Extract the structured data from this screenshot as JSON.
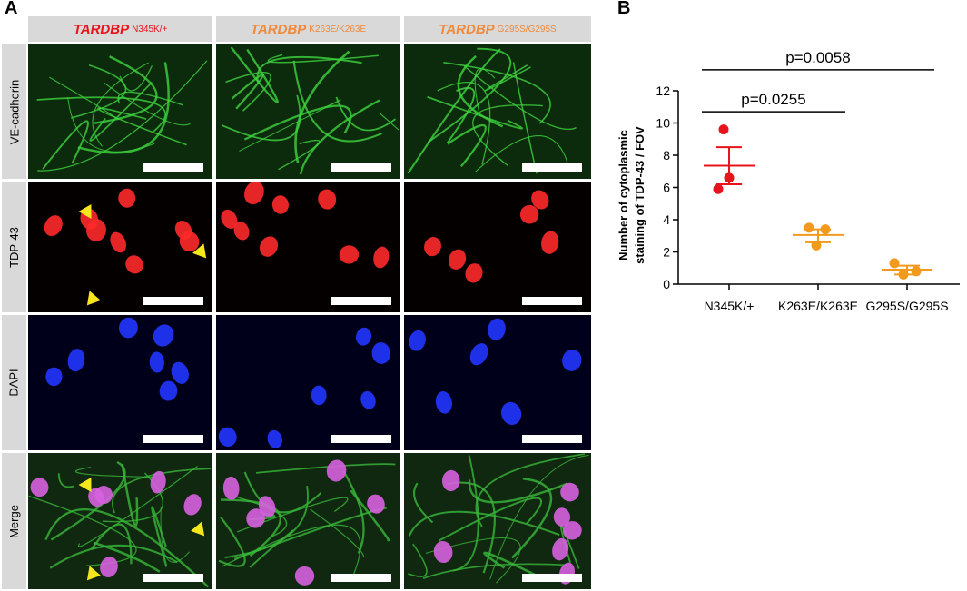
{
  "panel_a": {
    "letter": "A",
    "columns": [
      {
        "gene": "TARDBP",
        "genotype": "N345K/+",
        "color": "#e8141c"
      },
      {
        "gene": "TARDBP",
        "genotype": "K263E/K263E",
        "color": "#f08a3c"
      },
      {
        "gene": "TARDBP",
        "genotype": "G295S/G295S",
        "color": "#f08a3c"
      }
    ],
    "rows": [
      "VE-cadherin",
      "TDP-43",
      "DAPI",
      "Merge"
    ],
    "channel_colors": {
      "VE-cadherin": "#2fb82f",
      "TDP-43": "#ff2020",
      "DAPI": "#1a2cff",
      "Merge": "#d04ad8"
    },
    "arrow_color": "#f5e71c"
  },
  "panel_b": {
    "letter": "B",
    "chart_data": {
      "type": "scatter",
      "categories": [
        "N345K/+",
        "K263E/K263E",
        "G295S/G295S"
      ],
      "series": [
        {
          "category": "N345K/+",
          "color": "#e8141c",
          "points": [
            9.6,
            6.6,
            5.9
          ],
          "mean": 7.35,
          "sem_low": 6.2,
          "sem_high": 8.5
        },
        {
          "category": "K263E/K263E",
          "color": "#f29a1e",
          "points": [
            3.5,
            3.4,
            2.4
          ],
          "mean": 3.05,
          "sem_low": 2.6,
          "sem_high": 3.4
        },
        {
          "category": "G295S/G295S",
          "color": "#f29a1e",
          "points": [
            1.3,
            0.8,
            0.6
          ],
          "mean": 0.9,
          "sem_low": 0.6,
          "sem_high": 1.15
        }
      ],
      "ylabel_line1": "Number of cytoplasmic",
      "ylabel_line2": "staining of TDP-43 / FOV",
      "xlabel": "",
      "ylim": [
        0,
        12
      ],
      "yticks": [
        0,
        2,
        4,
        6,
        8,
        10,
        12
      ],
      "significance": [
        {
          "label": "p=0.0255",
          "from": 0,
          "to": 1,
          "y": 10.7
        },
        {
          "label": "p=0.0058",
          "from": 0,
          "to": 2,
          "y": 13.3
        }
      ]
    }
  }
}
